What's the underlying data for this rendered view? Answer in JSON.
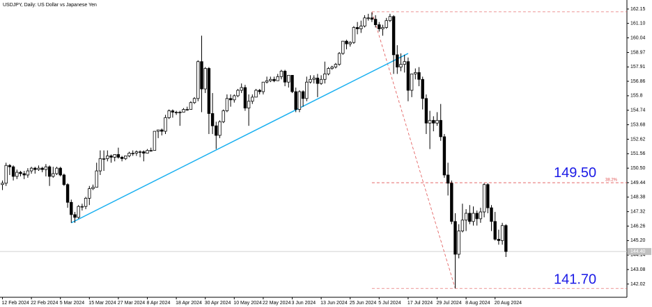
{
  "chart_data": {
    "type": "candlestick",
    "title": "USDJPY, Daily:  US Dollar vs Japanese Yen",
    "categories": [
      "12 Feb 2024",
      null,
      null,
      null,
      null,
      null,
      null,
      null,
      "22 Feb 2024",
      null,
      null,
      null,
      null,
      null,
      null,
      null,
      "5 Mar 2024",
      null,
      null,
      null,
      null,
      null,
      null,
      null,
      "15 Mar 2024",
      null,
      null,
      null,
      null,
      null,
      null,
      null,
      "27 Mar 2024",
      null,
      null,
      null,
      null,
      null,
      null,
      null,
      "8 Apr 2024",
      null,
      null,
      null,
      null,
      null,
      null,
      null,
      "18 Apr 2024",
      null,
      null,
      null,
      null,
      null,
      null,
      null,
      "30 Apr 2024",
      null,
      null,
      null,
      null,
      null,
      null,
      null,
      "10 May 2024",
      null,
      null,
      null,
      null,
      null,
      null,
      null,
      "22 May 2024",
      null,
      null,
      null,
      null,
      null,
      null,
      null,
      "3 Jun 2024",
      null,
      null,
      null,
      null,
      null,
      null,
      null,
      "13 Jun 2024",
      null,
      null,
      null,
      null,
      null,
      null,
      null,
      "25 Jun 2024",
      null,
      null,
      null,
      null,
      null,
      null,
      null,
      "5 Jul 2024",
      null,
      null,
      null,
      null,
      null,
      null,
      null,
      "17 Jul 2024",
      null,
      null,
      null,
      null,
      null,
      null,
      null,
      "29 Jul 2024",
      null,
      null,
      null,
      null,
      null,
      null,
      null,
      "8 Aug 2024",
      null,
      null,
      null,
      null,
      null,
      null,
      null,
      "20 Aug 2024",
      null,
      null,
      null
    ],
    "ohlc": [
      [
        149.3,
        149.6,
        148.9,
        149.4
      ],
      [
        149.4,
        150.9,
        149.2,
        150.7
      ],
      [
        150.7,
        150.8,
        150.0,
        150.6
      ],
      [
        150.6,
        150.7,
        149.6,
        149.9
      ],
      [
        149.9,
        150.4,
        149.7,
        150.2
      ],
      [
        150.2,
        150.3,
        149.9,
        150.1
      ],
      [
        150.1,
        150.3,
        149.7,
        150.0
      ],
      [
        150.0,
        150.5,
        149.8,
        150.3
      ],
      [
        150.3,
        150.6,
        150.1,
        150.5
      ],
      [
        150.5,
        150.6,
        150.1,
        150.4
      ],
      [
        150.4,
        150.7,
        150.3,
        150.5
      ],
      [
        150.5,
        150.6,
        150.2,
        150.4
      ],
      [
        150.4,
        150.8,
        149.9,
        150.6
      ],
      [
        150.6,
        150.7,
        149.2,
        149.9
      ],
      [
        149.9,
        150.6,
        149.8,
        150.1
      ],
      [
        150.1,
        150.6,
        150.0,
        150.5
      ],
      [
        150.5,
        150.6,
        149.9,
        150.0
      ],
      [
        150.0,
        150.1,
        149.2,
        149.3
      ],
      [
        149.3,
        149.4,
        147.6,
        148.0
      ],
      [
        148.0,
        148.2,
        146.5,
        147.1
      ],
      [
        147.1,
        147.3,
        146.5,
        146.9
      ],
      [
        146.9,
        147.8,
        146.8,
        147.7
      ],
      [
        147.7,
        147.9,
        147.4,
        147.7
      ],
      [
        147.7,
        148.4,
        147.5,
        148.3
      ],
      [
        148.3,
        149.2,
        147.8,
        149.0
      ],
      [
        149.0,
        149.3,
        148.9,
        149.1
      ],
      [
        149.1,
        150.9,
        149.1,
        150.3
      ],
      [
        150.3,
        151.8,
        150.0,
        151.2
      ],
      [
        151.2,
        151.8,
        150.3,
        151.2
      ],
      [
        151.2,
        151.8,
        151.0,
        151.4
      ],
      [
        151.4,
        151.5,
        150.9,
        151.3
      ],
      [
        151.3,
        151.5,
        151.0,
        151.5
      ],
      [
        151.5,
        152.0,
        151.2,
        151.3
      ],
      [
        151.3,
        151.4,
        151.0,
        151.2
      ],
      [
        151.2,
        151.4,
        151.1,
        151.4
      ],
      [
        151.4,
        151.7,
        151.3,
        151.6
      ],
      [
        151.6,
        151.8,
        151.4,
        151.6
      ],
      [
        151.6,
        151.8,
        151.4,
        151.7
      ],
      [
        151.7,
        151.8,
        151.3,
        151.7
      ],
      [
        151.7,
        151.8,
        151.0,
        151.6
      ],
      [
        151.6,
        151.9,
        151.6,
        151.8
      ],
      [
        151.8,
        152.0,
        151.7,
        151.8
      ],
      [
        151.8,
        153.2,
        151.8,
        153.2
      ],
      [
        153.2,
        153.3,
        152.7,
        153.3
      ],
      [
        153.3,
        153.4,
        152.9,
        153.2
      ],
      [
        153.2,
        154.4,
        153.0,
        154.2
      ],
      [
        154.2,
        154.8,
        154.1,
        154.7
      ],
      [
        154.7,
        154.8,
        154.2,
        154.6
      ],
      [
        154.6,
        154.7,
        154.4,
        154.6
      ],
      [
        154.6,
        154.7,
        153.6,
        154.6
      ],
      [
        154.6,
        154.9,
        154.6,
        154.8
      ],
      [
        154.8,
        155.0,
        154.7,
        154.8
      ],
      [
        154.8,
        155.4,
        154.8,
        155.3
      ],
      [
        155.3,
        155.7,
        155.2,
        155.6
      ],
      [
        155.6,
        158.4,
        155.4,
        158.3
      ],
      [
        158.3,
        160.2,
        154.6,
        156.3
      ],
      [
        156.3,
        157.9,
        156.0,
        157.8
      ],
      [
        157.8,
        157.9,
        153.0,
        154.5
      ],
      [
        154.5,
        156.0,
        153.0,
        153.6
      ],
      [
        153.6,
        153.9,
        151.9,
        152.9
      ],
      [
        152.9,
        154.0,
        152.7,
        153.9
      ],
      [
        153.9,
        154.8,
        153.8,
        154.7
      ],
      [
        154.7,
        155.9,
        154.6,
        155.6
      ],
      [
        155.6,
        155.9,
        155.0,
        155.5
      ],
      [
        155.5,
        155.9,
        155.3,
        155.8
      ],
      [
        155.8,
        156.3,
        155.7,
        156.2
      ],
      [
        156.2,
        156.7,
        156.0,
        156.4
      ],
      [
        156.4,
        156.6,
        154.7,
        154.9
      ],
      [
        154.9,
        155.9,
        153.6,
        155.4
      ],
      [
        155.4,
        155.9,
        155.2,
        155.7
      ],
      [
        155.7,
        156.3,
        155.7,
        156.2
      ],
      [
        156.2,
        156.3,
        155.9,
        156.1
      ],
      [
        156.1,
        156.8,
        155.9,
        156.8
      ],
      [
        156.8,
        157.2,
        156.7,
        156.9
      ],
      [
        156.9,
        157.2,
        156.8,
        157.0
      ],
      [
        157.0,
        157.2,
        156.8,
        156.9
      ],
      [
        156.9,
        157.4,
        156.9,
        157.2
      ],
      [
        157.2,
        157.7,
        157.0,
        157.6
      ],
      [
        157.6,
        157.7,
        156.5,
        156.8
      ],
      [
        156.8,
        157.3,
        156.4,
        157.3
      ],
      [
        157.3,
        157.3,
        156.0,
        156.1
      ],
      [
        156.1,
        156.4,
        154.6,
        154.8
      ],
      [
        154.8,
        156.2,
        154.6,
        156.1
      ],
      [
        156.1,
        156.2,
        155.0,
        155.6
      ],
      [
        155.6,
        157.2,
        155.4,
        156.8
      ],
      [
        156.8,
        157.3,
        156.7,
        157.0
      ],
      [
        157.0,
        157.3,
        156.7,
        157.1
      ],
      [
        157.1,
        157.4,
        155.7,
        156.7
      ],
      [
        156.7,
        157.3,
        156.6,
        157.0
      ],
      [
        157.0,
        158.3,
        156.7,
        157.4
      ],
      [
        157.4,
        157.9,
        157.3,
        157.8
      ],
      [
        157.8,
        158.0,
        157.7,
        157.9
      ],
      [
        157.9,
        158.2,
        157.8,
        158.1
      ],
      [
        158.1,
        159.0,
        158.0,
        158.9
      ],
      [
        158.9,
        159.8,
        158.8,
        159.8
      ],
      [
        159.8,
        159.9,
        159.2,
        159.6
      ],
      [
        159.6,
        159.8,
        159.4,
        159.7
      ],
      [
        159.7,
        160.9,
        159.6,
        160.8
      ],
      [
        160.8,
        161.2,
        160.3,
        160.7
      ],
      [
        160.7,
        161.3,
        160.4,
        160.9
      ],
      [
        160.9,
        161.7,
        160.8,
        161.5
      ],
      [
        161.5,
        161.8,
        161.3,
        161.5
      ],
      [
        161.5,
        161.9,
        161.2,
        161.4
      ],
      [
        161.4,
        161.7,
        160.8,
        161.0
      ],
      [
        161.0,
        161.2,
        160.5,
        160.7
      ],
      [
        160.7,
        161.0,
        160.2,
        160.8
      ],
      [
        160.8,
        161.5,
        160.7,
        161.3
      ],
      [
        161.3,
        161.8,
        161.2,
        161.6
      ],
      [
        161.6,
        161.7,
        157.4,
        158.8
      ],
      [
        158.8,
        159.5,
        157.4,
        157.9
      ],
      [
        157.9,
        158.9,
        157.6,
        158.1
      ],
      [
        158.1,
        158.8,
        157.5,
        158.3
      ],
      [
        158.3,
        158.6,
        155.4,
        156.2
      ],
      [
        156.2,
        157.4,
        155.7,
        157.4
      ],
      [
        157.4,
        157.8,
        157.0,
        157.5
      ],
      [
        157.5,
        157.9,
        156.5,
        157.0
      ],
      [
        157.0,
        157.2,
        154.8,
        155.6
      ],
      [
        155.6,
        155.9,
        153.0,
        153.8
      ],
      [
        153.8,
        154.7,
        151.9,
        154.0
      ],
      [
        154.0,
        154.3,
        153.2,
        153.8
      ],
      [
        153.8,
        154.6,
        153.6,
        154.0
      ],
      [
        154.0,
        155.2,
        152.5,
        152.8
      ],
      [
        152.8,
        153.0,
        149.8,
        150.0
      ],
      [
        150.0,
        150.9,
        148.5,
        149.4
      ],
      [
        149.4,
        149.6,
        146.4,
        146.6
      ],
      [
        146.6,
        147.2,
        141.7,
        144.2
      ],
      [
        144.2,
        146.4,
        143.9,
        145.9
      ],
      [
        145.9,
        147.9,
        145.8,
        146.7
      ],
      [
        146.7,
        147.5,
        145.9,
        147.2
      ],
      [
        147.2,
        147.8,
        146.4,
        146.6
      ],
      [
        146.6,
        147.7,
        146.3,
        147.2
      ],
      [
        147.2,
        147.4,
        146.3,
        146.8
      ],
      [
        146.8,
        147.6,
        146.5,
        147.3
      ],
      [
        147.3,
        149.4,
        146.9,
        149.3
      ],
      [
        149.3,
        149.4,
        147.2,
        147.6
      ],
      [
        147.6,
        147.8,
        145.9,
        146.6
      ],
      [
        146.6,
        147.3,
        145.2,
        145.3
      ],
      [
        145.3,
        146.0,
        144.9,
        145.2
      ],
      [
        145.2,
        146.5,
        144.9,
        146.3
      ],
      [
        146.3,
        146.4,
        144.0,
        144.4
      ]
    ],
    "up_color": "#ffffff",
    "down_color": "#000000",
    "ylim": [
      141.05,
      162.81
    ],
    "yticks": [
      162.15,
      {
        "value": 161.1,
        "label": "161.10"
      },
      160.04,
      158.97,
      157.91,
      156.86,
      155.8,
      154.74,
      153.68,
      152.62,
      151.56,
      {
        "value": 150.5,
        "label": "150.50"
      },
      149.44,
      148.38,
      147.32,
      146.26,
      {
        "value": 145.2,
        "label": "145.20"
      },
      144.14,
      143.08,
      142.02
    ],
    "last_price": {
      "value": 144.4,
      "label": "144.40"
    },
    "trendline": {
      "x": [
        19,
        112
      ],
      "y": [
        146.5,
        158.9
      ],
      "color": "#1ab0f0"
    },
    "fib": {
      "x": [
        102,
        125
      ],
      "high": 161.95,
      "low": 141.7,
      "ratio": {
        "value": 38.2,
        "label": "38.2%"
      },
      "color": "#e05050"
    },
    "annotations": [
      {
        "value": 149.5,
        "label": "149.50"
      },
      {
        "value": 141.7,
        "label": "141.70"
      }
    ],
    "annotation_color": "#1a1ae6"
  }
}
